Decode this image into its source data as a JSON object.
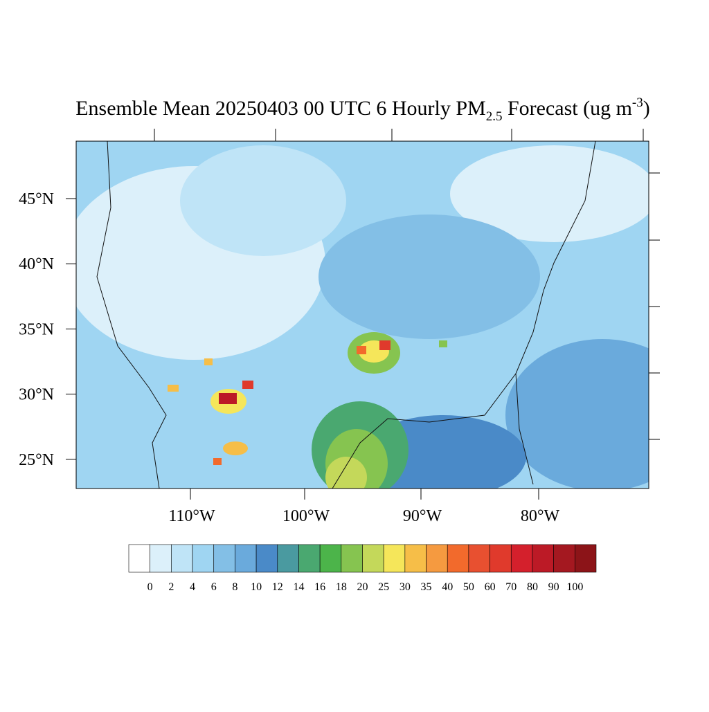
{
  "header": {
    "title_main": "Ensemble Mean 20250403 00 UTC 6 Hourly PM",
    "title_sub": "2.5",
    "title_mid": " Forecast (ug m",
    "title_sup": "-3",
    "title_end": ")"
  },
  "map": {
    "lat_labels": [
      "45°N",
      "40°N",
      "35°N",
      "30°N",
      "25°N"
    ],
    "lon_labels": [
      "110°W",
      "100°W",
      "90°W",
      "80°W"
    ]
  },
  "colorbar": {
    "levels": [
      0,
      2,
      4,
      6,
      8,
      10,
      12,
      14,
      16,
      18,
      20,
      25,
      30,
      35,
      40,
      50,
      60,
      70,
      80,
      90,
      100
    ],
    "colors": [
      "#ffffff",
      "#dcf0fa",
      "#bfe4f7",
      "#9fd5f2",
      "#83bfe6",
      "#6aaadc",
      "#4a8ac8",
      "#4a9aa0",
      "#4aa870",
      "#4cb44a",
      "#86c450",
      "#c4d85a",
      "#f5e65a",
      "#f6be48",
      "#f59a40",
      "#f26a2c",
      "#e85030",
      "#e03a2c",
      "#d4202c",
      "#bc1a26",
      "#a41820",
      "#8c1418"
    ]
  }
}
